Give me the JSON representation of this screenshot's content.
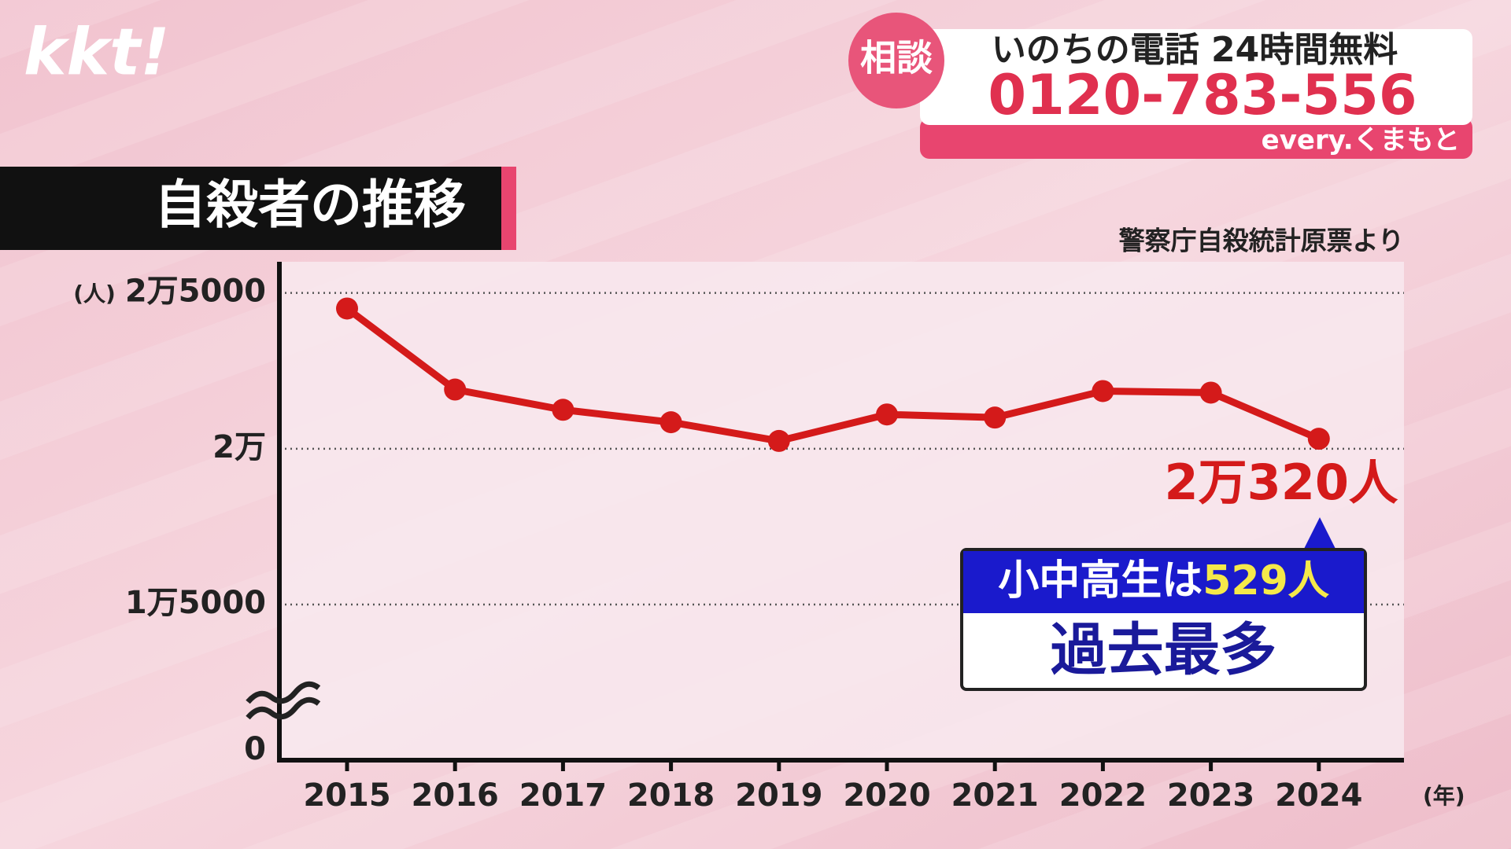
{
  "header": {
    "logo": "kkt!",
    "badge": "相談",
    "hotline": "いのちの電話 24時間無料",
    "phone": "0120-783-556",
    "program": "every.くまもと"
  },
  "chart_data": {
    "type": "line",
    "title": "自殺者の推移",
    "source": "警察庁自殺統計原票より",
    "y_unit": "(人)",
    "x_unit": "(年)",
    "categories": [
      "2015",
      "2016",
      "2017",
      "2018",
      "2019",
      "2020",
      "2021",
      "2022",
      "2023",
      "2024"
    ],
    "values": [
      24500,
      21900,
      21250,
      20850,
      20250,
      21100,
      21000,
      21850,
      21800,
      20320
    ],
    "value_labels": [
      null,
      null,
      null,
      null,
      null,
      null,
      null,
      null,
      null,
      "2万320人"
    ],
    "color": "#d41a1a",
    "ylim": [
      0,
      26000
    ],
    "yticks": [
      0,
      {
        "value": 15000,
        "label": "1万5000"
      },
      {
        "value": 20000,
        "label": "2万"
      },
      {
        "value": 25000,
        "label": "2万5000"
      }
    ],
    "y_axis_break": true,
    "grid": true,
    "callout": {
      "prefix": "小中高生は",
      "highlight": "529人",
      "body": "過去最多"
    }
  }
}
